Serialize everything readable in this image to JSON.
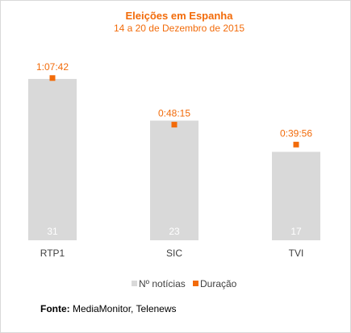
{
  "chart_data": {
    "type": "bar",
    "title": "Eleições em Espanha",
    "subtitle": "14 a 20 de Dezembro de 2015",
    "categories": [
      "RTP1",
      "SIC",
      "TVI"
    ],
    "series": [
      {
        "name": "Nº notícias",
        "type": "bar",
        "values": [
          31,
          23,
          17
        ],
        "labels": [
          "31",
          "23",
          "17"
        ],
        "color": "#d9d9d9"
      },
      {
        "name": "Duração",
        "type": "marker",
        "values_seconds": [
          4062,
          2895,
          2396
        ],
        "labels": [
          "1:07:42",
          "0:48:15",
          "0:39:56"
        ],
        "color": "#f26b0a"
      }
    ],
    "ylim_bars": [
      0,
      33
    ],
    "ylim_duration_seconds": [
      0,
      4300
    ],
    "grid": false,
    "legend": "bottom",
    "source_label": "Fonte:",
    "source_text": "MediaMonitor, Telenews"
  }
}
